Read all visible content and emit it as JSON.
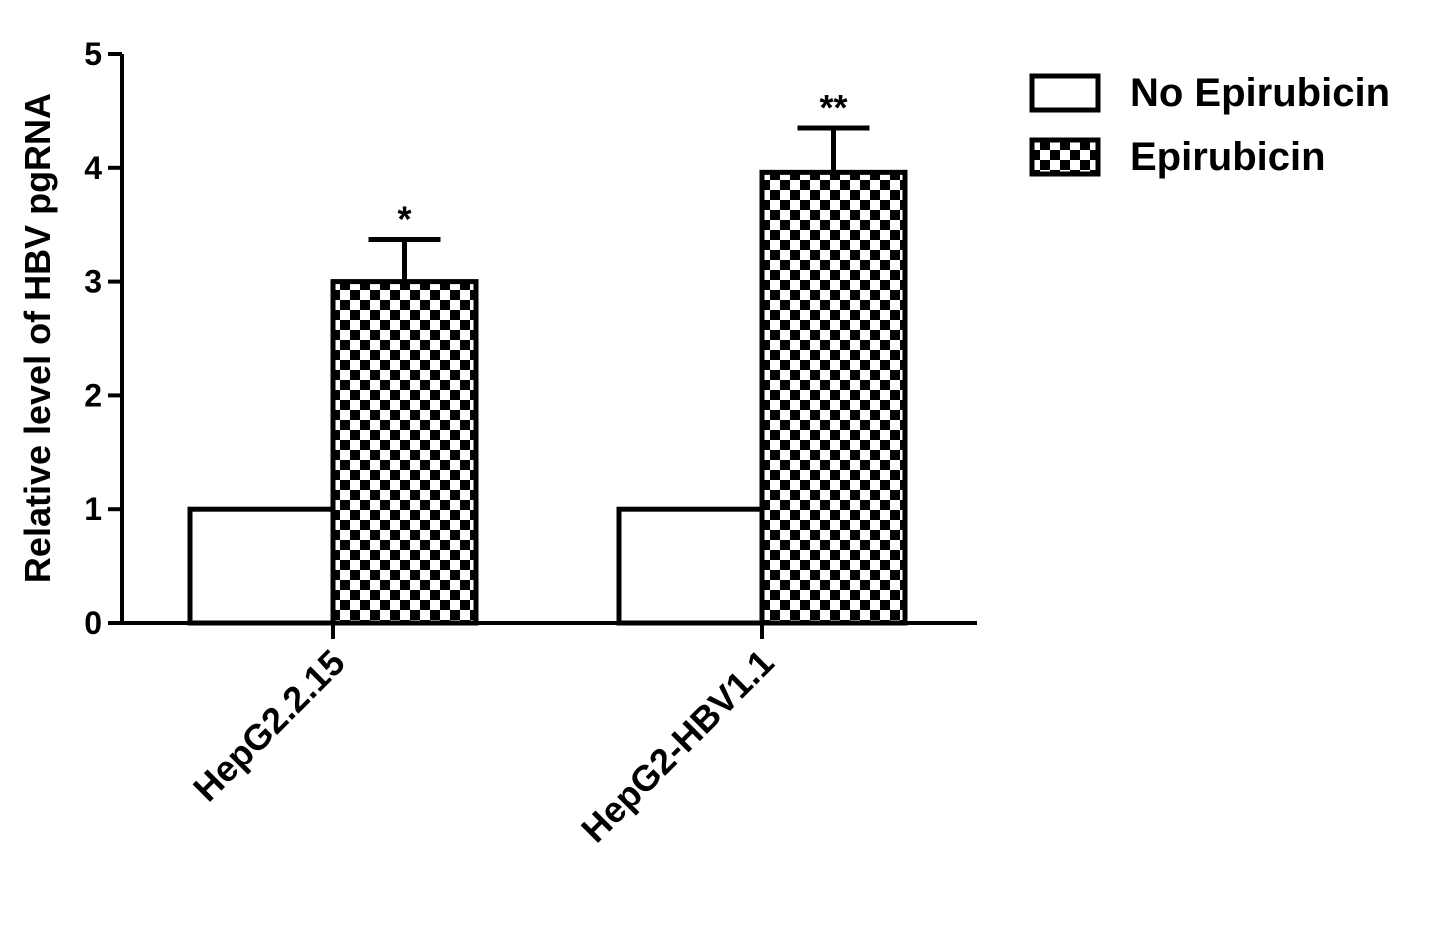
{
  "chart_data": {
    "type": "bar",
    "y_label": "Relative level of HBV pgRNA",
    "categories": [
      "HepG2.2.15",
      "HepG2-HBV1.1"
    ],
    "series": [
      {
        "name": "No Epirubicin",
        "color": "#ffffff",
        "values": [
          1,
          1
        ]
      },
      {
        "name": "Epirubicin",
        "color": "#000000",
        "pattern": "checkered",
        "values": [
          3.0,
          3.96
        ],
        "errors": [
          0.37,
          0.39
        ]
      }
    ],
    "annotations": [
      "*",
      "**"
    ],
    "ylim": [
      0,
      5
    ],
    "yticks": [
      0,
      1,
      2,
      3,
      4,
      5
    ],
    "legend": "top-right"
  }
}
